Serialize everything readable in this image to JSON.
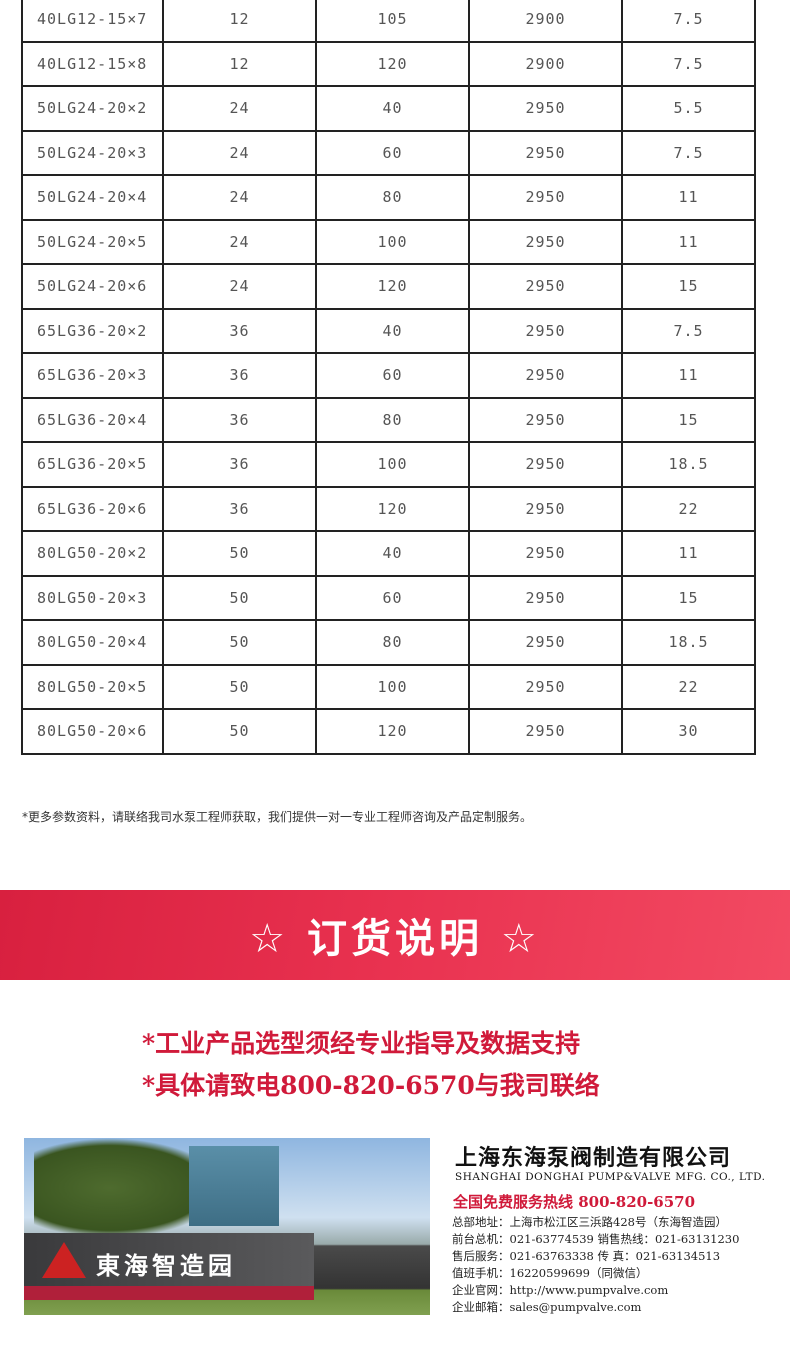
{
  "table": {
    "rows": [
      [
        "40LG12-15×7",
        "12",
        "105",
        "2900",
        "7.5"
      ],
      [
        "40LG12-15×8",
        "12",
        "120",
        "2900",
        "7.5"
      ],
      [
        "50LG24-20×2",
        "24",
        "40",
        "2950",
        "5.5"
      ],
      [
        "50LG24-20×3",
        "24",
        "60",
        "2950",
        "7.5"
      ],
      [
        "50LG24-20×4",
        "24",
        "80",
        "2950",
        "11"
      ],
      [
        "50LG24-20×5",
        "24",
        "100",
        "2950",
        "11"
      ],
      [
        "50LG24-20×6",
        "24",
        "120",
        "2950",
        "15"
      ],
      [
        "65LG36-20×2",
        "36",
        "40",
        "2950",
        "7.5"
      ],
      [
        "65LG36-20×3",
        "36",
        "60",
        "2950",
        "11"
      ],
      [
        "65LG36-20×4",
        "36",
        "80",
        "2950",
        "15"
      ],
      [
        "65LG36-20×5",
        "36",
        "100",
        "2950",
        "18.5"
      ],
      [
        "65LG36-20×6",
        "36",
        "120",
        "2950",
        "22"
      ],
      [
        "80LG50-20×2",
        "50",
        "40",
        "2950",
        "11"
      ],
      [
        "80LG50-20×3",
        "50",
        "60",
        "2950",
        "15"
      ],
      [
        "80LG50-20×4",
        "50",
        "80",
        "2950",
        "18.5"
      ],
      [
        "80LG50-20×5",
        "50",
        "100",
        "2950",
        "22"
      ],
      [
        "80LG50-20×6",
        "50",
        "120",
        "2950",
        "30"
      ]
    ]
  },
  "note": "*更多参数资料，请联络我司水泵工程师获取，我们提供一对一专业工程师咨询及产品定制服务。",
  "banner": {
    "title": "☆ 订货说明 ☆",
    "color": "#e42d4a"
  },
  "order_lines": [
    "*工业产品选型须经专业指导及数据支持",
    "*具体请致电800-820-6570与我司联络"
  ],
  "photo": {
    "sign_text": "東海智造园"
  },
  "company": {
    "name": "上海东海泵阀制造有限公司",
    "name_en": "SHANGHAI DONGHAI PUMP&VALVE MFG. CO., LTD.",
    "hotline": "全国免费服务热线  800-820-6570",
    "lines": [
      "总部地址：上海市松江区三浜路428号（东海智造园）",
      "前台总机：021-63774539   销售热线：021-63131230",
      "售后服务：021-63763338   传      真：021-63134513",
      "值班手机：16220599699（同微信）",
      "企业官网：http://www.pumpvalve.com",
      "企业邮箱：sales@pumpvalve.com"
    ]
  }
}
